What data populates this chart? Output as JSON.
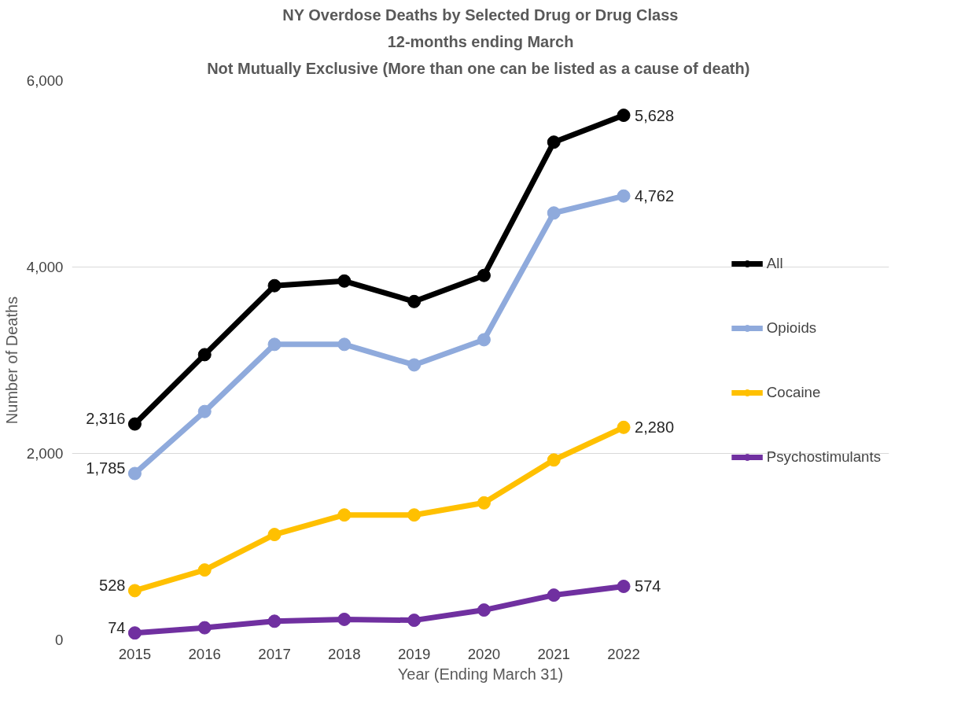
{
  "chart_data": {
    "type": "line",
    "title": "NY Overdose Deaths by Selected Drug or Drug Class",
    "subtitle": "12-months ending March",
    "annotations": [
      "Not Mutually Exclusive  (More than one can be listed as a cause of death)"
    ],
    "xlabel": "Year (Ending March 31)",
    "ylabel": "Number of Deaths",
    "categories": [
      "2015",
      "2016",
      "2017",
      "2018",
      "2019",
      "2020",
      "2021",
      "2022"
    ],
    "series": [
      {
        "name": "All",
        "color": "#000000",
        "values": [
          2316,
          3060,
          3800,
          3850,
          3630,
          3910,
          5340,
          5628
        ],
        "value_labels": [
          "2,316",
          null,
          null,
          null,
          null,
          null,
          null,
          "5,628"
        ]
      },
      {
        "name": "Opioids",
        "color": "#8faadc",
        "values": [
          1785,
          2450,
          3170,
          3170,
          2950,
          3220,
          4580,
          4762
        ],
        "value_labels": [
          "1,785",
          null,
          null,
          null,
          null,
          null,
          null,
          "4,762"
        ]
      },
      {
        "name": "Cocaine",
        "color": "#ffc000",
        "values": [
          528,
          750,
          1130,
          1340,
          1340,
          1470,
          1930,
          2280
        ],
        "value_labels": [
          "528",
          null,
          null,
          null,
          null,
          null,
          null,
          "2,280"
        ]
      },
      {
        "name": "Psychostimulants",
        "color": "#7030a0",
        "values": [
          74,
          130,
          200,
          220,
          210,
          320,
          480,
          574
        ],
        "value_labels": [
          "74",
          null,
          null,
          null,
          null,
          null,
          null,
          "574"
        ]
      }
    ],
    "ylim": [
      0,
      6000
    ],
    "yticks": [
      {
        "value": 0,
        "label": "0"
      },
      {
        "value": 2000,
        "label": "2,000"
      },
      {
        "value": 4000,
        "label": "4,000"
      },
      {
        "value": 6000,
        "label": "6,000"
      }
    ],
    "grid": "y",
    "legend": "right",
    "marker": "circle",
    "line_style": "solid"
  }
}
